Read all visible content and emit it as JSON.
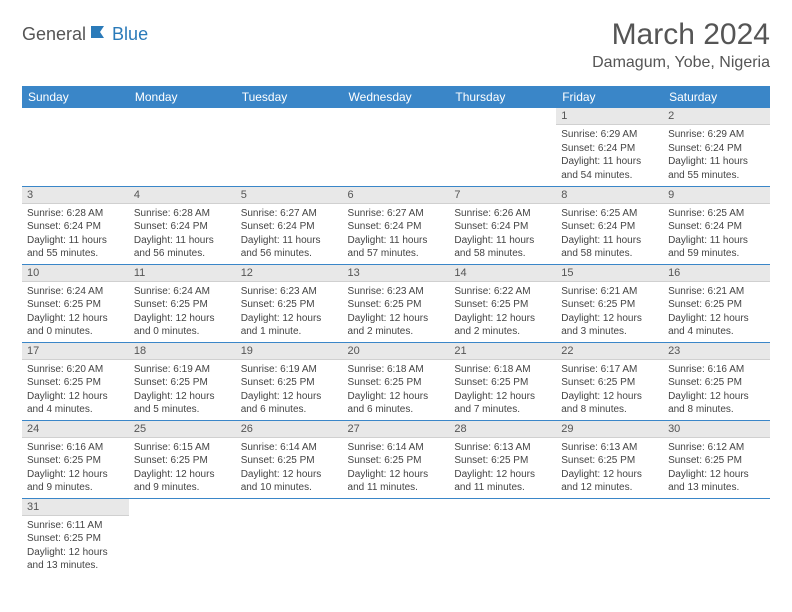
{
  "logo": {
    "text1": "General",
    "text2": "Blue"
  },
  "title": "March 2024",
  "location": "Damagum, Yobe, Nigeria",
  "colors": {
    "header_bg": "#3a86c8",
    "header_text": "#ffffff",
    "daynum_bg": "#e8e8e8",
    "border": "#3a86c8",
    "logo_blue": "#2a7ab9",
    "text": "#555555"
  },
  "day_headers": [
    "Sunday",
    "Monday",
    "Tuesday",
    "Wednesday",
    "Thursday",
    "Friday",
    "Saturday"
  ],
  "weeks": [
    [
      {
        "empty": true
      },
      {
        "empty": true
      },
      {
        "empty": true
      },
      {
        "empty": true
      },
      {
        "empty": true
      },
      {
        "n": "1",
        "sr": "Sunrise: 6:29 AM",
        "ss": "Sunset: 6:24 PM",
        "dl": "Daylight: 11 hours and 54 minutes."
      },
      {
        "n": "2",
        "sr": "Sunrise: 6:29 AM",
        "ss": "Sunset: 6:24 PM",
        "dl": "Daylight: 11 hours and 55 minutes."
      }
    ],
    [
      {
        "n": "3",
        "sr": "Sunrise: 6:28 AM",
        "ss": "Sunset: 6:24 PM",
        "dl": "Daylight: 11 hours and 55 minutes."
      },
      {
        "n": "4",
        "sr": "Sunrise: 6:28 AM",
        "ss": "Sunset: 6:24 PM",
        "dl": "Daylight: 11 hours and 56 minutes."
      },
      {
        "n": "5",
        "sr": "Sunrise: 6:27 AM",
        "ss": "Sunset: 6:24 PM",
        "dl": "Daylight: 11 hours and 56 minutes."
      },
      {
        "n": "6",
        "sr": "Sunrise: 6:27 AM",
        "ss": "Sunset: 6:24 PM",
        "dl": "Daylight: 11 hours and 57 minutes."
      },
      {
        "n": "7",
        "sr": "Sunrise: 6:26 AM",
        "ss": "Sunset: 6:24 PM",
        "dl": "Daylight: 11 hours and 58 minutes."
      },
      {
        "n": "8",
        "sr": "Sunrise: 6:25 AM",
        "ss": "Sunset: 6:24 PM",
        "dl": "Daylight: 11 hours and 58 minutes."
      },
      {
        "n": "9",
        "sr": "Sunrise: 6:25 AM",
        "ss": "Sunset: 6:24 PM",
        "dl": "Daylight: 11 hours and 59 minutes."
      }
    ],
    [
      {
        "n": "10",
        "sr": "Sunrise: 6:24 AM",
        "ss": "Sunset: 6:25 PM",
        "dl": "Daylight: 12 hours and 0 minutes."
      },
      {
        "n": "11",
        "sr": "Sunrise: 6:24 AM",
        "ss": "Sunset: 6:25 PM",
        "dl": "Daylight: 12 hours and 0 minutes."
      },
      {
        "n": "12",
        "sr": "Sunrise: 6:23 AM",
        "ss": "Sunset: 6:25 PM",
        "dl": "Daylight: 12 hours and 1 minute."
      },
      {
        "n": "13",
        "sr": "Sunrise: 6:23 AM",
        "ss": "Sunset: 6:25 PM",
        "dl": "Daylight: 12 hours and 2 minutes."
      },
      {
        "n": "14",
        "sr": "Sunrise: 6:22 AM",
        "ss": "Sunset: 6:25 PM",
        "dl": "Daylight: 12 hours and 2 minutes."
      },
      {
        "n": "15",
        "sr": "Sunrise: 6:21 AM",
        "ss": "Sunset: 6:25 PM",
        "dl": "Daylight: 12 hours and 3 minutes."
      },
      {
        "n": "16",
        "sr": "Sunrise: 6:21 AM",
        "ss": "Sunset: 6:25 PM",
        "dl": "Daylight: 12 hours and 4 minutes."
      }
    ],
    [
      {
        "n": "17",
        "sr": "Sunrise: 6:20 AM",
        "ss": "Sunset: 6:25 PM",
        "dl": "Daylight: 12 hours and 4 minutes."
      },
      {
        "n": "18",
        "sr": "Sunrise: 6:19 AM",
        "ss": "Sunset: 6:25 PM",
        "dl": "Daylight: 12 hours and 5 minutes."
      },
      {
        "n": "19",
        "sr": "Sunrise: 6:19 AM",
        "ss": "Sunset: 6:25 PM",
        "dl": "Daylight: 12 hours and 6 minutes."
      },
      {
        "n": "20",
        "sr": "Sunrise: 6:18 AM",
        "ss": "Sunset: 6:25 PM",
        "dl": "Daylight: 12 hours and 6 minutes."
      },
      {
        "n": "21",
        "sr": "Sunrise: 6:18 AM",
        "ss": "Sunset: 6:25 PM",
        "dl": "Daylight: 12 hours and 7 minutes."
      },
      {
        "n": "22",
        "sr": "Sunrise: 6:17 AM",
        "ss": "Sunset: 6:25 PM",
        "dl": "Daylight: 12 hours and 8 minutes."
      },
      {
        "n": "23",
        "sr": "Sunrise: 6:16 AM",
        "ss": "Sunset: 6:25 PM",
        "dl": "Daylight: 12 hours and 8 minutes."
      }
    ],
    [
      {
        "n": "24",
        "sr": "Sunrise: 6:16 AM",
        "ss": "Sunset: 6:25 PM",
        "dl": "Daylight: 12 hours and 9 minutes."
      },
      {
        "n": "25",
        "sr": "Sunrise: 6:15 AM",
        "ss": "Sunset: 6:25 PM",
        "dl": "Daylight: 12 hours and 9 minutes."
      },
      {
        "n": "26",
        "sr": "Sunrise: 6:14 AM",
        "ss": "Sunset: 6:25 PM",
        "dl": "Daylight: 12 hours and 10 minutes."
      },
      {
        "n": "27",
        "sr": "Sunrise: 6:14 AM",
        "ss": "Sunset: 6:25 PM",
        "dl": "Daylight: 12 hours and 11 minutes."
      },
      {
        "n": "28",
        "sr": "Sunrise: 6:13 AM",
        "ss": "Sunset: 6:25 PM",
        "dl": "Daylight: 12 hours and 11 minutes."
      },
      {
        "n": "29",
        "sr": "Sunrise: 6:13 AM",
        "ss": "Sunset: 6:25 PM",
        "dl": "Daylight: 12 hours and 12 minutes."
      },
      {
        "n": "30",
        "sr": "Sunrise: 6:12 AM",
        "ss": "Sunset: 6:25 PM",
        "dl": "Daylight: 12 hours and 13 minutes."
      }
    ],
    [
      {
        "n": "31",
        "sr": "Sunrise: 6:11 AM",
        "ss": "Sunset: 6:25 PM",
        "dl": "Daylight: 12 hours and 13 minutes."
      },
      {
        "empty": true
      },
      {
        "empty": true
      },
      {
        "empty": true
      },
      {
        "empty": true
      },
      {
        "empty": true
      },
      {
        "empty": true
      }
    ]
  ]
}
